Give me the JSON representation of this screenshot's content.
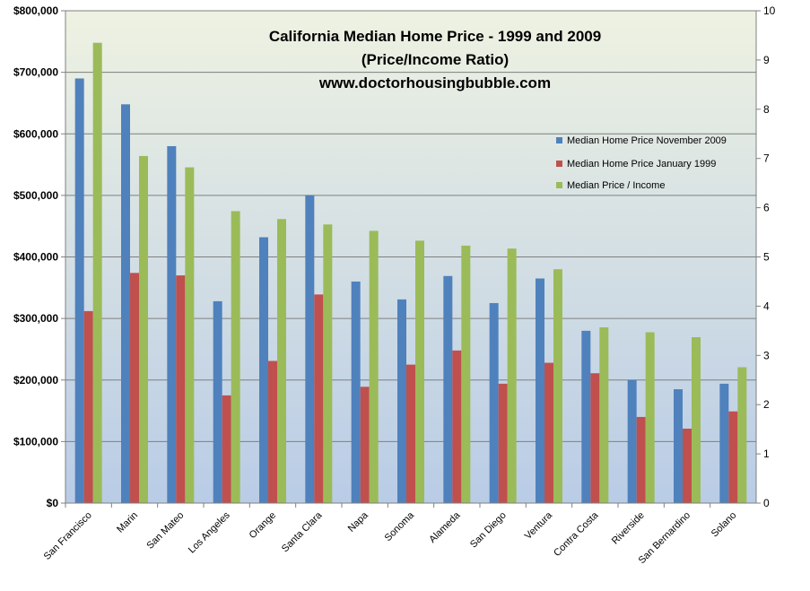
{
  "chart_data": {
    "type": "bar",
    "title_lines": [
      "California Median Home Price - 1999 and 2009",
      "(Price/Income Ratio)",
      "www.doctorhousingbubble.com"
    ],
    "categories": [
      "San Francisco",
      "Marin",
      "San Mateo",
      "Los Angeles",
      "Orange",
      "Santa Clara",
      "Napa",
      "Sonoma",
      "Alameda",
      "San Diego",
      "Ventura",
      "Contra Costa",
      "Riverside",
      "San Bernardino",
      "Solano"
    ],
    "series": [
      {
        "name": "Median Home Price November 2009",
        "axis": "left",
        "color": "#4f81bd",
        "values": [
          690000,
          648000,
          580000,
          328000,
          432000,
          500000,
          360000,
          331000,
          369000,
          325000,
          365000,
          280000,
          200000,
          185000,
          194000
        ]
      },
      {
        "name": "Median Home Price January 1999",
        "axis": "left",
        "color": "#c0504d",
        "values": [
          312000,
          374000,
          370000,
          175000,
          231000,
          339000,
          189000,
          225000,
          248000,
          194000,
          228000,
          211000,
          140000,
          121000,
          149000
        ]
      },
      {
        "name": "Median Price / Income",
        "axis": "right",
        "color": "#9bbb59",
        "values": [
          9.35,
          7.05,
          6.82,
          5.93,
          5.77,
          5.66,
          5.53,
          5.33,
          5.23,
          5.17,
          4.75,
          3.57,
          3.47,
          3.37,
          2.76
        ]
      }
    ],
    "y_left": {
      "ylim": [
        0,
        800000
      ],
      "ticks": [
        0,
        100000,
        200000,
        300000,
        400000,
        500000,
        600000,
        700000,
        800000
      ],
      "tick_labels": [
        "$0",
        "$100,000",
        "$200,000",
        "$300,000",
        "$400,000",
        "$500,000",
        "$600,000",
        "$700,000",
        "$800,000"
      ]
    },
    "y_right": {
      "ylim": [
        0,
        10
      ],
      "ticks": [
        0,
        1,
        2,
        3,
        4,
        5,
        6,
        7,
        8,
        9,
        10
      ],
      "tick_labels": [
        "0",
        "1",
        "2",
        "3",
        "4",
        "5",
        "6",
        "7",
        "8",
        "9",
        "10"
      ]
    },
    "grid": true,
    "legend_position": "right-upper",
    "background_gradient": [
      "#eef2e2",
      "#b9cce6"
    ]
  }
}
